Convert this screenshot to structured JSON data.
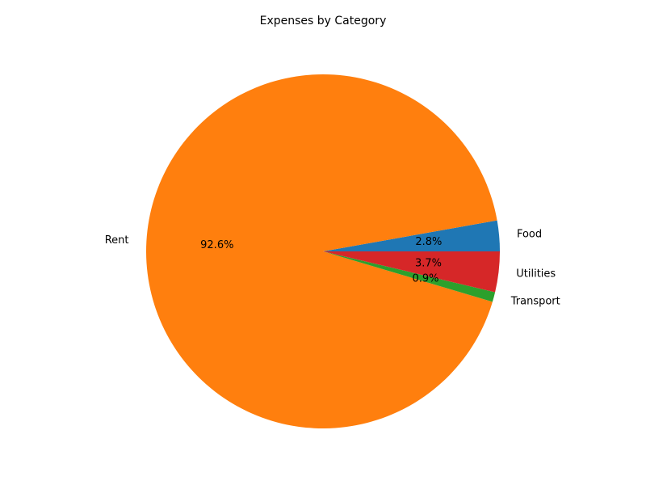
{
  "chart_data": {
    "type": "pie",
    "title": "Expenses by Category",
    "categories": [
      "Food",
      "Rent",
      "Transport",
      "Utilities"
    ],
    "values": [
      2.8,
      92.6,
      0.9,
      3.7
    ],
    "percent_labels": [
      "2.8%",
      "92.6%",
      "0.9%",
      "3.7%"
    ],
    "colors": [
      "#1f77b4",
      "#ff7f0e",
      "#2ca02c",
      "#d62728"
    ],
    "start_angle_deg": 0,
    "direction": "counterclockwise",
    "legend": "none"
  }
}
